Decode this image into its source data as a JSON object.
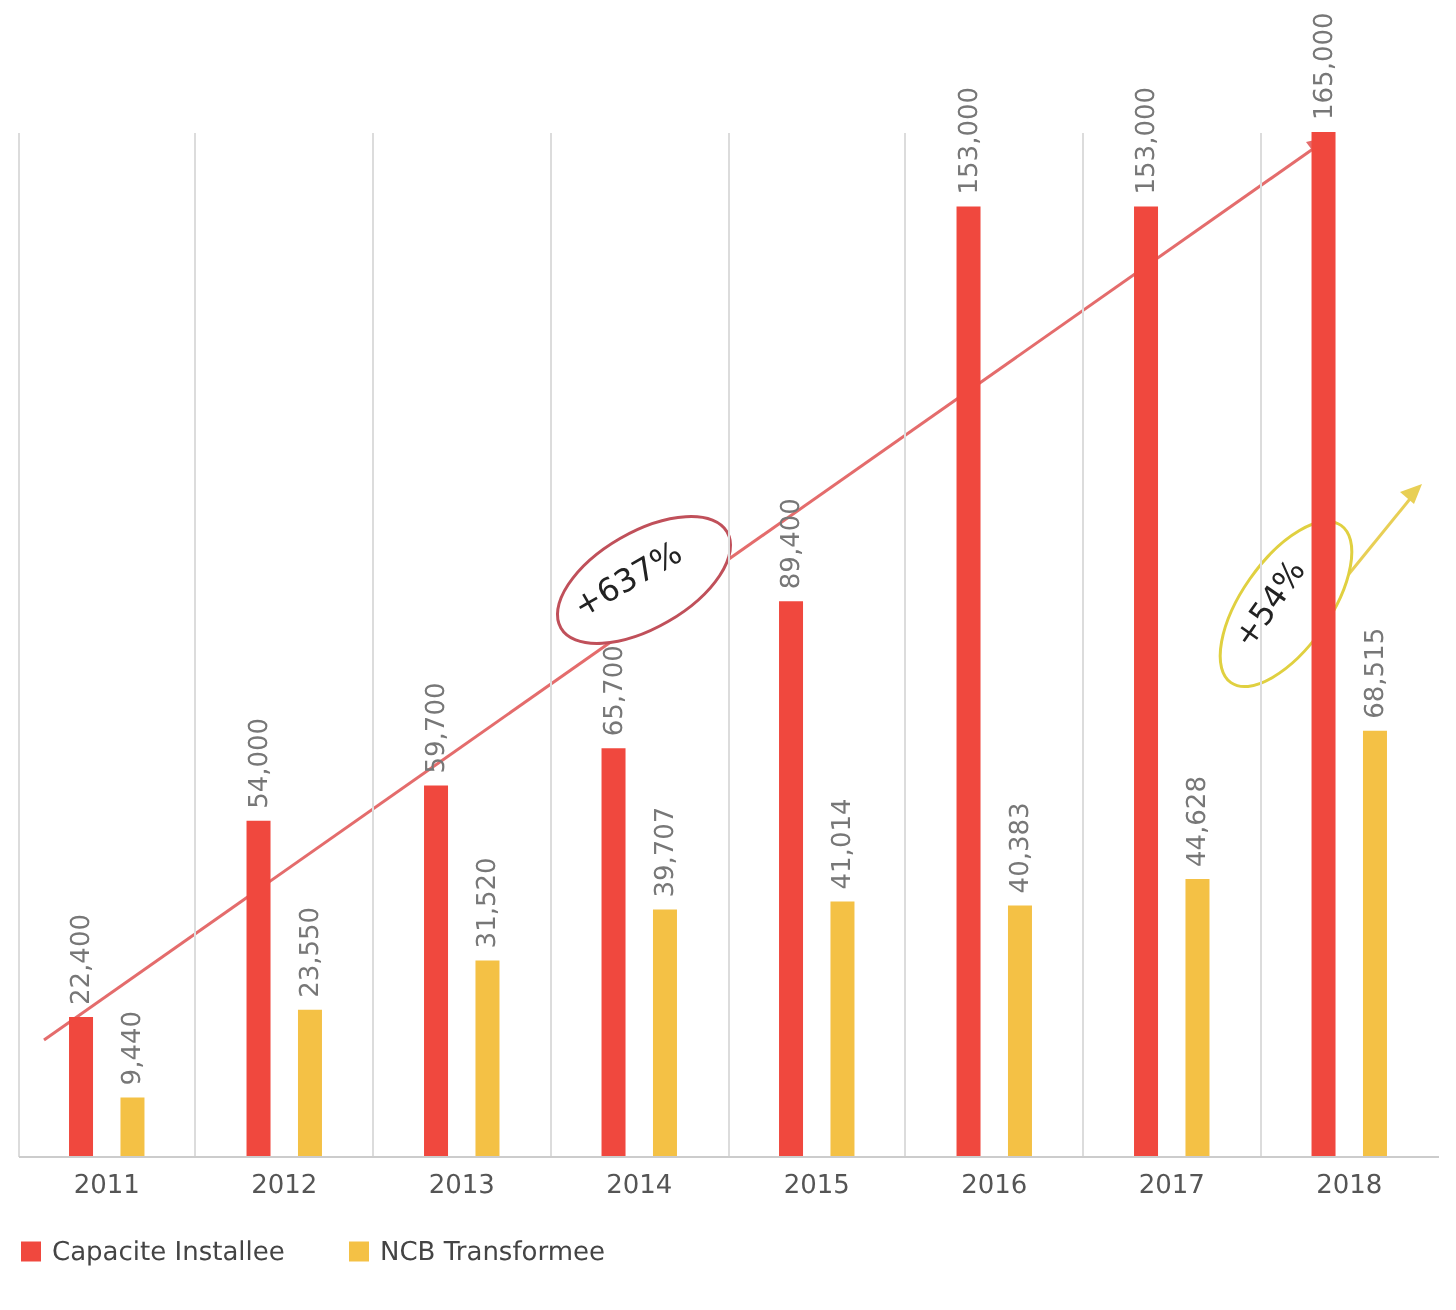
{
  "chart_data": {
    "type": "bar",
    "categories": [
      "2011",
      "2012",
      "2013",
      "2014",
      "2015",
      "2016",
      "2017",
      "2018"
    ],
    "series": [
      {
        "name": "Capacite Installee",
        "color": "#f0483e",
        "values": [
          22400,
          54000,
          59700,
          65700,
          89400,
          153000,
          153000,
          165000
        ],
        "value_labels": [
          "22,400",
          "54,000",
          "59,700",
          "65,700",
          "89,400",
          "153,000",
          "153,000",
          "165,000"
        ]
      },
      {
        "name": "NCB Transformee",
        "color": "#f4c145",
        "values": [
          9440,
          23550,
          31520,
          39707,
          41014,
          40383,
          44628,
          68515
        ],
        "value_labels": [
          "9,440",
          "23,550",
          "31,520",
          "39,707",
          "41,014",
          "40,383",
          "44,628",
          "68,515"
        ]
      }
    ],
    "grid": "x",
    "legend": "bottom",
    "annotations": [
      "+637%",
      "+54%"
    ]
  }
}
